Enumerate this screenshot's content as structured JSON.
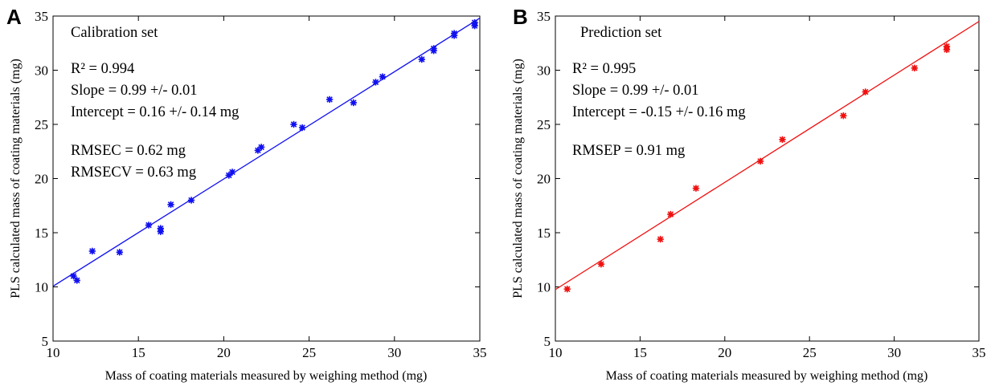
{
  "chart_data": [
    {
      "type": "scatter",
      "panel_label": "A",
      "title": "Calibration set",
      "xlabel": "Mass of coating materials measured by weighing method (mg)",
      "ylabel": "PLS calculated mass of coating materials (mg)",
      "xlim": [
        10,
        35
      ],
      "ylim": [
        5,
        35
      ],
      "xticks": [
        10,
        15,
        20,
        25,
        30,
        35
      ],
      "yticks": [
        5,
        10,
        15,
        20,
        25,
        30,
        35
      ],
      "grid": false,
      "color": "#1010f0",
      "annotations": [
        "R² = 0.994",
        "Slope = 0.99 +/- 0.01",
        "Intercept =  0.16 +/- 0.14 mg",
        "RMSEC = 0.62 mg",
        "RMSECV = 0.63 mg"
      ],
      "fit_line": {
        "slope": 0.99,
        "intercept": 0.16
      },
      "points": [
        [
          11.2,
          11.0
        ],
        [
          11.4,
          10.6
        ],
        [
          12.3,
          13.3
        ],
        [
          13.9,
          13.2
        ],
        [
          15.6,
          15.7
        ],
        [
          16.3,
          15.4
        ],
        [
          16.3,
          15.1
        ],
        [
          16.9,
          17.6
        ],
        [
          18.1,
          18.0
        ],
        [
          20.3,
          20.3
        ],
        [
          20.5,
          20.6
        ],
        [
          22.0,
          22.6
        ],
        [
          22.2,
          22.9
        ],
        [
          24.1,
          25.0
        ],
        [
          24.6,
          24.7
        ],
        [
          26.2,
          27.3
        ],
        [
          27.6,
          27.0
        ],
        [
          28.9,
          28.9
        ],
        [
          29.3,
          29.4
        ],
        [
          31.6,
          31.0
        ],
        [
          32.3,
          31.8
        ],
        [
          32.3,
          32.0
        ],
        [
          33.5,
          33.2
        ],
        [
          33.5,
          33.4
        ],
        [
          34.7,
          34.1
        ],
        [
          34.7,
          34.4
        ]
      ]
    },
    {
      "type": "scatter",
      "panel_label": "B",
      "title": "Prediction set",
      "xlabel": "Mass of coating materials measured by weighing method (mg)",
      "ylabel": "PLS calculated mass of coating materials (mg)",
      "xlim": [
        10,
        35
      ],
      "ylim": [
        5,
        35
      ],
      "xticks": [
        10,
        15,
        20,
        25,
        30,
        35
      ],
      "yticks": [
        5,
        10,
        15,
        20,
        25,
        30,
        35
      ],
      "grid": false,
      "color": "#f01010",
      "annotations": [
        "R² = 0.995",
        "Slope =  0.99 +/- 0.01",
        "Intercept = -0.15 +/- 0.16 mg",
        "RMSEP = 0.91 mg"
      ],
      "fit_line": {
        "slope": 0.99,
        "intercept": -0.15
      },
      "points": [
        [
          10.7,
          9.8
        ],
        [
          12.7,
          12.1
        ],
        [
          16.2,
          14.4
        ],
        [
          16.8,
          16.7
        ],
        [
          18.3,
          19.1
        ],
        [
          22.1,
          21.6
        ],
        [
          23.4,
          23.6
        ],
        [
          27.0,
          25.8
        ],
        [
          28.3,
          28.0
        ],
        [
          31.2,
          30.2
        ],
        [
          33.1,
          31.9
        ],
        [
          33.1,
          32.2
        ]
      ]
    }
  ]
}
